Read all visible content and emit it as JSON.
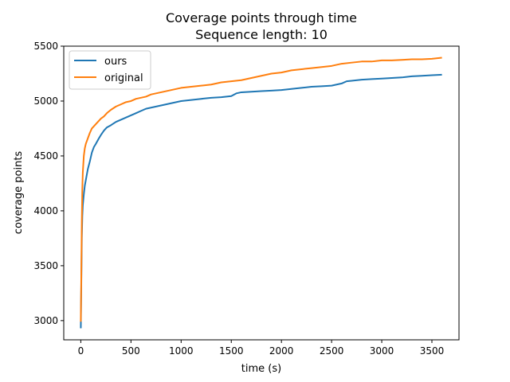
{
  "chart_data": {
    "type": "line",
    "title": "Coverage points through time",
    "subtitle": "Sequence length: 10",
    "xlabel": "time (s)",
    "ylabel": "coverage points",
    "xlim": [
      -170,
      3770
    ],
    "ylim": [
      2825,
      5500
    ],
    "xticks": [
      0,
      500,
      1000,
      1500,
      2000,
      2500,
      3000,
      3500
    ],
    "yticks": [
      3000,
      3500,
      4000,
      4500,
      5000,
      5500
    ],
    "grid": false,
    "legend_position": "top-left",
    "series": [
      {
        "name": "ours",
        "color": "#1f77b4",
        "points": [
          [
            0,
            2930
          ],
          [
            5,
            3350
          ],
          [
            10,
            3750
          ],
          [
            15,
            3950
          ],
          [
            20,
            4050
          ],
          [
            30,
            4150
          ],
          [
            40,
            4230
          ],
          [
            50,
            4280
          ],
          [
            70,
            4380
          ],
          [
            90,
            4450
          ],
          [
            110,
            4530
          ],
          [
            130,
            4580
          ],
          [
            150,
            4610
          ],
          [
            180,
            4660
          ],
          [
            200,
            4690
          ],
          [
            230,
            4730
          ],
          [
            260,
            4760
          ],
          [
            300,
            4780
          ],
          [
            350,
            4810
          ],
          [
            400,
            4830
          ],
          [
            450,
            4850
          ],
          [
            500,
            4870
          ],
          [
            550,
            4890
          ],
          [
            600,
            4910
          ],
          [
            650,
            4930
          ],
          [
            700,
            4940
          ],
          [
            750,
            4950
          ],
          [
            800,
            4960
          ],
          [
            850,
            4970
          ],
          [
            900,
            4980
          ],
          [
            950,
            4990
          ],
          [
            1000,
            5000
          ],
          [
            1100,
            5010
          ],
          [
            1200,
            5020
          ],
          [
            1300,
            5030
          ],
          [
            1400,
            5035
          ],
          [
            1500,
            5045
          ],
          [
            1550,
            5070
          ],
          [
            1600,
            5080
          ],
          [
            1700,
            5085
          ],
          [
            1800,
            5090
          ],
          [
            1900,
            5095
          ],
          [
            2000,
            5100
          ],
          [
            2100,
            5110
          ],
          [
            2200,
            5120
          ],
          [
            2300,
            5130
          ],
          [
            2400,
            5135
          ],
          [
            2500,
            5140
          ],
          [
            2600,
            5160
          ],
          [
            2650,
            5180
          ],
          [
            2700,
            5185
          ],
          [
            2800,
            5195
          ],
          [
            2900,
            5200
          ],
          [
            3000,
            5205
          ],
          [
            3100,
            5210
          ],
          [
            3200,
            5215
          ],
          [
            3300,
            5225
          ],
          [
            3400,
            5230
          ],
          [
            3500,
            5235
          ],
          [
            3600,
            5240
          ]
        ]
      },
      {
        "name": "original",
        "color": "#ff7f0e",
        "points": [
          [
            0,
            2990
          ],
          [
            5,
            3400
          ],
          [
            10,
            3900
          ],
          [
            15,
            4200
          ],
          [
            20,
            4350
          ],
          [
            30,
            4500
          ],
          [
            40,
            4570
          ],
          [
            50,
            4610
          ],
          [
            70,
            4660
          ],
          [
            90,
            4710
          ],
          [
            110,
            4750
          ],
          [
            130,
            4770
          ],
          [
            150,
            4790
          ],
          [
            180,
            4820
          ],
          [
            200,
            4840
          ],
          [
            230,
            4860
          ],
          [
            260,
            4890
          ],
          [
            300,
            4920
          ],
          [
            350,
            4950
          ],
          [
            400,
            4970
          ],
          [
            450,
            4990
          ],
          [
            500,
            5000
          ],
          [
            550,
            5020
          ],
          [
            600,
            5030
          ],
          [
            650,
            5040
          ],
          [
            700,
            5060
          ],
          [
            750,
            5070
          ],
          [
            800,
            5080
          ],
          [
            850,
            5090
          ],
          [
            900,
            5100
          ],
          [
            950,
            5110
          ],
          [
            1000,
            5120
          ],
          [
            1100,
            5130
          ],
          [
            1200,
            5140
          ],
          [
            1300,
            5150
          ],
          [
            1400,
            5170
          ],
          [
            1500,
            5180
          ],
          [
            1600,
            5190
          ],
          [
            1700,
            5210
          ],
          [
            1800,
            5230
          ],
          [
            1900,
            5250
          ],
          [
            2000,
            5260
          ],
          [
            2100,
            5280
          ],
          [
            2200,
            5290
          ],
          [
            2300,
            5300
          ],
          [
            2400,
            5310
          ],
          [
            2500,
            5320
          ],
          [
            2600,
            5340
          ],
          [
            2700,
            5350
          ],
          [
            2800,
            5360
          ],
          [
            2900,
            5360
          ],
          [
            3000,
            5370
          ],
          [
            3100,
            5370
          ],
          [
            3200,
            5375
          ],
          [
            3300,
            5380
          ],
          [
            3400,
            5380
          ],
          [
            3500,
            5385
          ],
          [
            3600,
            5395
          ]
        ]
      }
    ]
  }
}
